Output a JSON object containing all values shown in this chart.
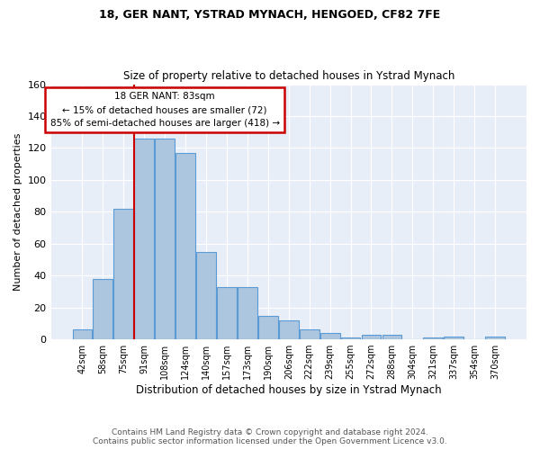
{
  "title1": "18, GER NANT, YSTRAD MYNACH, HENGOED, CF82 7FE",
  "title2": "Size of property relative to detached houses in Ystrad Mynach",
  "xlabel": "Distribution of detached houses by size in Ystrad Mynach",
  "ylabel": "Number of detached properties",
  "footer1": "Contains HM Land Registry data © Crown copyright and database right 2024.",
  "footer2": "Contains public sector information licensed under the Open Government Licence v3.0.",
  "categories": [
    "42sqm",
    "58sqm",
    "75sqm",
    "91sqm",
    "108sqm",
    "124sqm",
    "140sqm",
    "157sqm",
    "173sqm",
    "190sqm",
    "206sqm",
    "222sqm",
    "239sqm",
    "255sqm",
    "272sqm",
    "288sqm",
    "304sqm",
    "321sqm",
    "337sqm",
    "354sqm",
    "370sqm"
  ],
  "values": [
    6,
    38,
    82,
    126,
    126,
    117,
    55,
    33,
    33,
    15,
    12,
    6,
    4,
    1,
    3,
    3,
    0,
    1,
    2,
    0,
    2
  ],
  "bar_color": "#adc6e0",
  "bar_edge_color": "#5b9bd5",
  "bg_color": "#e8eef8",
  "grid_color": "#ffffff",
  "annotation_line1": "18 GER NANT: 83sqm",
  "annotation_line2": "← 15% of detached houses are smaller (72)",
  "annotation_line3": "85% of semi-detached houses are larger (418) →",
  "annotation_box_color": "#ffffff",
  "annotation_box_edge": "#cc0000",
  "vline_color": "#cc0000",
  "ylim": [
    0,
    160
  ],
  "yticks": [
    0,
    20,
    40,
    60,
    80,
    100,
    120,
    140,
    160
  ],
  "fig_bg": "#ffffff"
}
